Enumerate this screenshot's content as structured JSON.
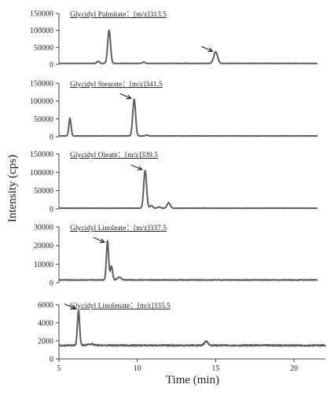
{
  "chart_data": {
    "type": "line",
    "xlabel": "Time (min)",
    "ylabel": "Intensity (cps)",
    "xlim": [
      5,
      22
    ],
    "x_ticks": [
      5,
      10,
      15,
      20
    ],
    "x_tick_labels": [
      "5",
      "10",
      "15",
      "20"
    ],
    "grid": false,
    "line_color": "#606060",
    "panels": [
      {
        "title": "Glycidyl Palmitate：[m/z]313.5",
        "ylim": [
          0,
          150000
        ],
        "y_ticks": [
          0,
          50000,
          100000,
          150000
        ],
        "y_tick_labels": [
          "0",
          "50000",
          "100000",
          "150000"
        ],
        "baseline": 3000,
        "noise": 400,
        "end": 21.5,
        "peaks": [
          {
            "x": 7.5,
            "y": 6000,
            "w": 0.08
          },
          {
            "x": 8.2,
            "y": 97000,
            "w": 0.09
          },
          {
            "x": 10.4,
            "y": 3500,
            "w": 0.08
          },
          {
            "x": 15.0,
            "y": 34000,
            "w": 0.12
          }
        ],
        "arrow_at": {
          "x": 15.0,
          "y": 34000
        }
      },
      {
        "title": "Glycidyl Stearate：[m/z]341.5",
        "ylim": [
          0,
          150000
        ],
        "y_ticks": [
          0,
          50000,
          100000,
          150000
        ],
        "y_tick_labels": [
          "0",
          "50000",
          "100000",
          "150000"
        ],
        "baseline": 2000,
        "noise": 400,
        "end": 21.5,
        "peaks": [
          {
            "x": 5.7,
            "y": 50000,
            "w": 0.07
          },
          {
            "x": 9.8,
            "y": 103000,
            "w": 0.09
          },
          {
            "x": 10.6,
            "y": 2500,
            "w": 0.08
          }
        ],
        "arrow_at": {
          "x": 9.8,
          "y": 103000
        }
      },
      {
        "title": "Glycidyl Oleate：[m/z]339.5",
        "ylim": [
          0,
          150000
        ],
        "y_ticks": [
          0,
          50000,
          100000,
          150000
        ],
        "y_tick_labels": [
          "0",
          "50000",
          "100000",
          "150000"
        ],
        "baseline": 2000,
        "noise": 400,
        "end": 21.5,
        "peaks": [
          {
            "x": 10.5,
            "y": 103000,
            "w": 0.09
          },
          {
            "x": 10.9,
            "y": 7000,
            "w": 0.09
          },
          {
            "x": 11.4,
            "y": 3500,
            "w": 0.09
          },
          {
            "x": 12.0,
            "y": 15000,
            "w": 0.1
          }
        ],
        "arrow_at": {
          "x": 10.5,
          "y": 103000
        }
      },
      {
        "title": "Glycidyl Linoleate：[m/z]337.5",
        "ylim": [
          0,
          30000
        ],
        "y_ticks": [
          0,
          10000,
          20000,
          30000
        ],
        "y_tick_labels": [
          "0",
          "10000",
          "20000",
          "30000"
        ],
        "baseline": 1500,
        "noise": 150,
        "end": 21.5,
        "peaks": [
          {
            "x": 8.1,
            "y": 21000,
            "w": 0.07
          },
          {
            "x": 8.35,
            "y": 7500,
            "w": 0.07
          },
          {
            "x": 8.85,
            "y": 1500,
            "w": 0.12
          }
        ],
        "arrow_at": {
          "x": 8.1,
          "y": 21000
        }
      },
      {
        "title": "Glycidyl Linolenate：[m/z]335.5",
        "ylim": [
          0,
          6000
        ],
        "y_ticks": [
          0,
          2000,
          4000,
          6000
        ],
        "y_tick_labels": [
          "0",
          "2000",
          "4000",
          "6000"
        ],
        "baseline": 1500,
        "noise": 70,
        "end": 22,
        "peaks": [
          {
            "x": 6.25,
            "y": 3900,
            "w": 0.07
          },
          {
            "x": 7.0,
            "y": 150,
            "w": 0.2
          },
          {
            "x": 14.4,
            "y": 450,
            "w": 0.12
          }
        ],
        "arrow_at": {
          "x": 6.25,
          "y": 5400
        }
      }
    ]
  }
}
